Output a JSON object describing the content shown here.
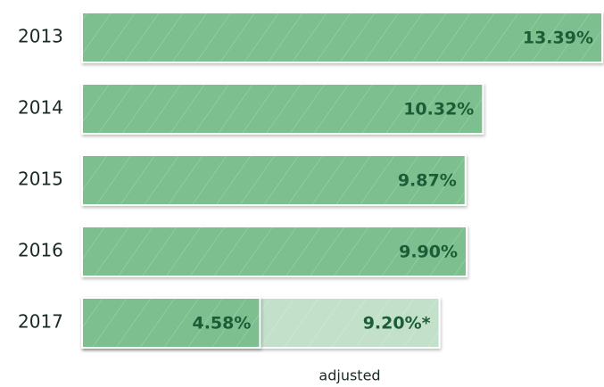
{
  "chart_data": {
    "type": "bar",
    "orientation": "horizontal",
    "categories": [
      "2013",
      "2014",
      "2015",
      "2016",
      "2017"
    ],
    "series": [
      {
        "color": "#7dbf8f",
        "values": [
          13.39,
          10.32,
          9.87,
          9.9,
          4.58
        ],
        "value_labels": [
          "13.39%",
          "10.32%",
          "9.87%",
          "9.90%",
          "4.58%"
        ]
      },
      {
        "name": "adjusted",
        "color": "#c3e0cb",
        "values": [
          null,
          null,
          null,
          null,
          9.2
        ],
        "value_labels": [
          null,
          null,
          null,
          null,
          "9.20%*"
        ]
      }
    ]
  }
}
